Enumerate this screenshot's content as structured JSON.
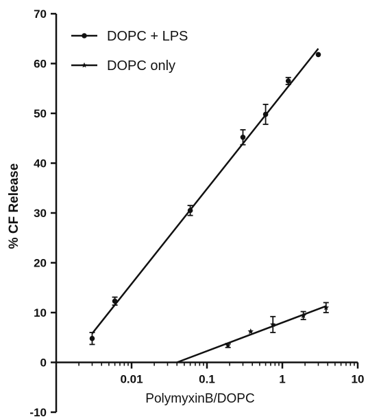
{
  "chart_data": {
    "type": "scatter",
    "title": "",
    "xlabel": "PolymyxinB/DOPC",
    "ylabel": "% CF Release",
    "x_scale": "log",
    "xlim": [
      0.001,
      10
    ],
    "ylim": [
      -10,
      70
    ],
    "x_ticks": [
      0.01,
      0.1,
      1,
      10
    ],
    "x_tick_labels": [
      "0.01",
      "0.1",
      "1",
      "10"
    ],
    "y_ticks": [
      -10,
      0,
      10,
      20,
      30,
      40,
      50,
      60,
      70
    ],
    "y_tick_labels": [
      "-10",
      "0",
      "10",
      "20",
      "30",
      "40",
      "50",
      "60",
      "70"
    ],
    "grid": false,
    "legend_position": "top-left",
    "series": [
      {
        "name": "DOPC + LPS",
        "marker": "circle",
        "color": "#111111",
        "points": [
          {
            "x": 0.003,
            "y": 4.8,
            "err": 1.2
          },
          {
            "x": 0.006,
            "y": 12.3,
            "err": 0.8
          },
          {
            "x": 0.06,
            "y": 30.5,
            "err": 1.0
          },
          {
            "x": 0.3,
            "y": 45.2,
            "err": 1.5
          },
          {
            "x": 0.6,
            "y": 49.8,
            "err": 2.0
          },
          {
            "x": 1.2,
            "y": 56.5,
            "err": 0.7
          },
          {
            "x": 3.0,
            "y": 61.8,
            "err": 0
          }
        ],
        "fit": {
          "x": [
            0.003,
            3.0
          ],
          "y": [
            5.8,
            63.0
          ]
        }
      },
      {
        "name": "DOPC only",
        "marker": "star",
        "color": "#111111",
        "points": [
          {
            "x": 0.19,
            "y": 3.4,
            "err": 0.4
          },
          {
            "x": 0.38,
            "y": 6.2,
            "err": 0
          },
          {
            "x": 0.75,
            "y": 7.6,
            "err": 1.6
          },
          {
            "x": 1.9,
            "y": 9.4,
            "err": 0.8
          },
          {
            "x": 3.8,
            "y": 11.0,
            "err": 1.0
          }
        ],
        "fit": {
          "x": [
            0.04,
            3.8
          ],
          "y": [
            0,
            11.3
          ]
        }
      }
    ]
  }
}
